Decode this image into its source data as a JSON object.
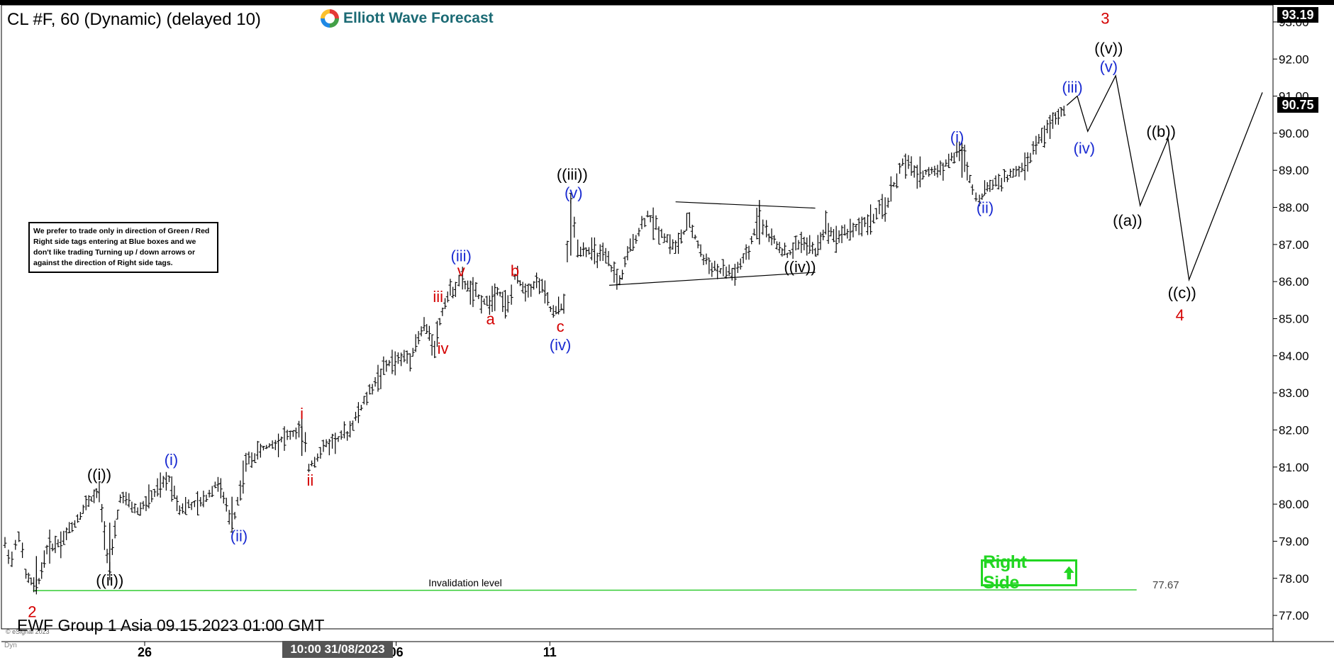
{
  "header": {
    "symbol_title": "CL #F, 60 (Dynamic) (delayed 10)",
    "brand": "Elliott Wave Forecast"
  },
  "notice": {
    "text": "We prefer to trade only in direction of Green / Red Right side tags entering at Blue boxes and we don't like trading Turning up / down arrows or against the direction of Right side tags."
  },
  "right_side_tag": {
    "label": "Right Side",
    "color": "#22d622"
  },
  "footer": {
    "label": "EWF Group 1 Asia 09.15.2023 01:00 GMT",
    "copyright": "© eSignal 2023",
    "dyn_label": "Dyn"
  },
  "crosshair": {
    "date_label": "10:00 31/08/2023"
  },
  "price_tags": {
    "top": "93.19",
    "last": "90.75"
  },
  "colors": {
    "red_labels": "#d40000",
    "blue_labels": "#1a2bd1",
    "black_labels": "#000000",
    "invalidation_line": "#33cc33",
    "bars": "#000000"
  },
  "chart_data": {
    "type": "line",
    "instrument": "CL #F",
    "timeframe": "60",
    "y_axis": {
      "ylim": [
        76.6,
        93.4
      ],
      "ticks": [
        "77.00",
        "78.00",
        "79.00",
        "80.00",
        "81.00",
        "82.00",
        "83.00",
        "84.00",
        "85.00",
        "86.00",
        "87.00",
        "88.00",
        "89.00",
        "90.00",
        "91.00",
        "92.00",
        "93.00"
      ]
    },
    "x_axis": {
      "ticks": [
        {
          "label": "26",
          "at": 0.2
        },
        {
          "label": "06",
          "at": 0.56
        },
        {
          "label": "11",
          "at": 0.78
        }
      ]
    },
    "price_series": [
      {
        "t": 0.0,
        "y": 78.9
      },
      {
        "t": 0.01,
        "y": 78.5
      },
      {
        "t": 0.02,
        "y": 79.2
      },
      {
        "t": 0.03,
        "y": 78.1
      },
      {
        "t": 0.045,
        "y": 77.67
      },
      {
        "t": 0.06,
        "y": 78.8
      },
      {
        "t": 0.08,
        "y": 79.0
      },
      {
        "t": 0.1,
        "y": 79.5
      },
      {
        "t": 0.12,
        "y": 80.1
      },
      {
        "t": 0.135,
        "y": 80.3
      },
      {
        "t": 0.15,
        "y": 78.2
      },
      {
        "t": 0.165,
        "y": 80.2
      },
      {
        "t": 0.19,
        "y": 79.8
      },
      {
        "t": 0.21,
        "y": 80.2
      },
      {
        "t": 0.235,
        "y": 80.7
      },
      {
        "t": 0.25,
        "y": 79.9
      },
      {
        "t": 0.28,
        "y": 80.0
      },
      {
        "t": 0.305,
        "y": 80.6
      },
      {
        "t": 0.325,
        "y": 79.4
      },
      {
        "t": 0.345,
        "y": 81.1
      },
      {
        "t": 0.37,
        "y": 81.5
      },
      {
        "t": 0.4,
        "y": 81.8
      },
      {
        "t": 0.425,
        "y": 82.0
      },
      {
        "t": 0.435,
        "y": 81.0
      },
      {
        "t": 0.46,
        "y": 81.6
      },
      {
        "t": 0.49,
        "y": 81.9
      },
      {
        "t": 0.51,
        "y": 82.6
      },
      {
        "t": 0.53,
        "y": 83.3
      },
      {
        "t": 0.55,
        "y": 83.8
      },
      {
        "t": 0.58,
        "y": 84.0
      },
      {
        "t": 0.6,
        "y": 84.8
      },
      {
        "t": 0.615,
        "y": 84.3
      },
      {
        "t": 0.63,
        "y": 85.5
      },
      {
        "t": 0.645,
        "y": 85.9
      },
      {
        "t": 0.655,
        "y": 86.0
      },
      {
        "t": 0.67,
        "y": 85.7
      },
      {
        "t": 0.69,
        "y": 85.4
      },
      {
        "t": 0.705,
        "y": 85.8
      },
      {
        "t": 0.72,
        "y": 85.3
      },
      {
        "t": 0.73,
        "y": 86.1
      },
      {
        "t": 0.745,
        "y": 85.8
      },
      {
        "t": 0.765,
        "y": 86.0
      },
      {
        "t": 0.785,
        "y": 85.1
      },
      {
        "t": 0.8,
        "y": 85.4
      },
      {
        "t": 0.81,
        "y": 88.2
      },
      {
        "t": 0.82,
        "y": 86.9
      },
      {
        "t": 0.84,
        "y": 86.8
      },
      {
        "t": 0.86,
        "y": 86.6
      },
      {
        "t": 0.88,
        "y": 86.0
      },
      {
        "t": 0.895,
        "y": 86.9
      },
      {
        "t": 0.92,
        "y": 87.8
      },
      {
        "t": 0.94,
        "y": 87.3
      },
      {
        "t": 0.96,
        "y": 86.9
      },
      {
        "t": 0.98,
        "y": 87.6
      },
      {
        "t": 1.0,
        "y": 86.6
      },
      {
        "t": 1.02,
        "y": 86.3
      },
      {
        "t": 1.045,
        "y": 86.2
      },
      {
        "t": 1.065,
        "y": 86.8
      },
      {
        "t": 1.08,
        "y": 87.9
      },
      {
        "t": 1.09,
        "y": 87.3
      },
      {
        "t": 1.105,
        "y": 87.0
      },
      {
        "t": 1.12,
        "y": 86.7
      },
      {
        "t": 1.14,
        "y": 87.1
      },
      {
        "t": 1.16,
        "y": 86.8
      },
      {
        "t": 1.175,
        "y": 87.5
      },
      {
        "t": 1.19,
        "y": 87.2
      },
      {
        "t": 1.21,
        "y": 87.4
      },
      {
        "t": 1.235,
        "y": 87.6
      },
      {
        "t": 1.26,
        "y": 88.0
      },
      {
        "t": 1.285,
        "y": 89.2
      },
      {
        "t": 1.31,
        "y": 88.9
      },
      {
        "t": 1.335,
        "y": 89.0
      },
      {
        "t": 1.355,
        "y": 89.3
      },
      {
        "t": 1.37,
        "y": 89.6
      },
      {
        "t": 1.385,
        "y": 88.5
      },
      {
        "t": 1.395,
        "y": 88.2
      },
      {
        "t": 1.41,
        "y": 88.6
      },
      {
        "t": 1.435,
        "y": 88.8
      },
      {
        "t": 1.46,
        "y": 89.1
      },
      {
        "t": 1.48,
        "y": 89.8
      },
      {
        "t": 1.5,
        "y": 90.3
      },
      {
        "t": 1.52,
        "y": 90.75
      }
    ],
    "projection": [
      {
        "t": 1.52,
        "y": 90.75
      },
      {
        "t": 1.535,
        "y": 91.0
      },
      {
        "t": 1.55,
        "y": 90.05
      },
      {
        "t": 1.59,
        "y": 91.55
      },
      {
        "t": 1.625,
        "y": 88.05
      },
      {
        "t": 1.665,
        "y": 89.85
      },
      {
        "t": 1.695,
        "y": 86.05
      },
      {
        "t": 1.8,
        "y": 91.1
      }
    ],
    "triangle": {
      "upper": [
        {
          "t": 0.96,
          "y": 88.15
        },
        {
          "t": 1.16,
          "y": 87.98
        }
      ],
      "lower": [
        {
          "t": 0.865,
          "y": 85.9
        },
        {
          "t": 1.16,
          "y": 86.25
        }
      ]
    },
    "invalidation": {
      "label": "Invalidation level",
      "value": "77.67",
      "y": 77.67,
      "t_start": 0.04,
      "t_end": 1.62
    },
    "wave_labels": [
      {
        "text": "2",
        "t": 0.039,
        "y": 76.95,
        "color": "red"
      },
      {
        "text": "((i))",
        "t": 0.135,
        "y": 80.65,
        "color": "black"
      },
      {
        "text": "((ii))",
        "t": 0.15,
        "y": 77.8,
        "color": "black"
      },
      {
        "text": "(i)",
        "t": 0.238,
        "y": 81.05,
        "color": "blue"
      },
      {
        "text": "(ii)",
        "t": 0.335,
        "y": 79.0,
        "color": "blue"
      },
      {
        "text": "i",
        "t": 0.425,
        "y": 82.3,
        "color": "red"
      },
      {
        "text": "ii",
        "t": 0.437,
        "y": 80.5,
        "color": "red"
      },
      {
        "text": "iii",
        "t": 0.62,
        "y": 85.45,
        "color": "red"
      },
      {
        "text": "iv",
        "t": 0.627,
        "y": 84.05,
        "color": "red"
      },
      {
        "text": "(iii)",
        "t": 0.653,
        "y": 86.55,
        "color": "blue"
      },
      {
        "text": "v",
        "t": 0.653,
        "y": 86.15,
        "color": "red"
      },
      {
        "text": "a",
        "t": 0.695,
        "y": 84.85,
        "color": "red"
      },
      {
        "text": "b",
        "t": 0.73,
        "y": 86.15,
        "color": "red"
      },
      {
        "text": "c",
        "t": 0.795,
        "y": 84.65,
        "color": "red"
      },
      {
        "text": "(iv)",
        "t": 0.795,
        "y": 84.15,
        "color": "blue"
      },
      {
        "text": "((iii))",
        "t": 0.812,
        "y": 88.75,
        "color": "black"
      },
      {
        "text": "(v)",
        "t": 0.814,
        "y": 88.25,
        "color": "blue"
      },
      {
        "text": "((iv))",
        "t": 1.138,
        "y": 86.25,
        "color": "black"
      },
      {
        "text": "(i)",
        "t": 1.363,
        "y": 89.75,
        "color": "blue"
      },
      {
        "text": "(ii)",
        "t": 1.403,
        "y": 87.85,
        "color": "blue"
      },
      {
        "text": "(iii)",
        "t": 1.528,
        "y": 91.1,
        "color": "blue"
      },
      {
        "text": "(iv)",
        "t": 1.545,
        "y": 89.45,
        "color": "blue"
      },
      {
        "text": "3",
        "t": 1.575,
        "y": 92.95,
        "color": "red"
      },
      {
        "text": "((v))",
        "t": 1.58,
        "y": 92.15,
        "color": "black"
      },
      {
        "text": "(v)",
        "t": 1.58,
        "y": 91.65,
        "color": "blue"
      },
      {
        "text": "((b))",
        "t": 1.655,
        "y": 89.9,
        "color": "black"
      },
      {
        "text": "((a))",
        "t": 1.607,
        "y": 87.5,
        "color": "black"
      },
      {
        "text": "((c))",
        "t": 1.685,
        "y": 85.55,
        "color": "black"
      },
      {
        "text": "4",
        "t": 1.682,
        "y": 84.95,
        "color": "red"
      }
    ]
  }
}
